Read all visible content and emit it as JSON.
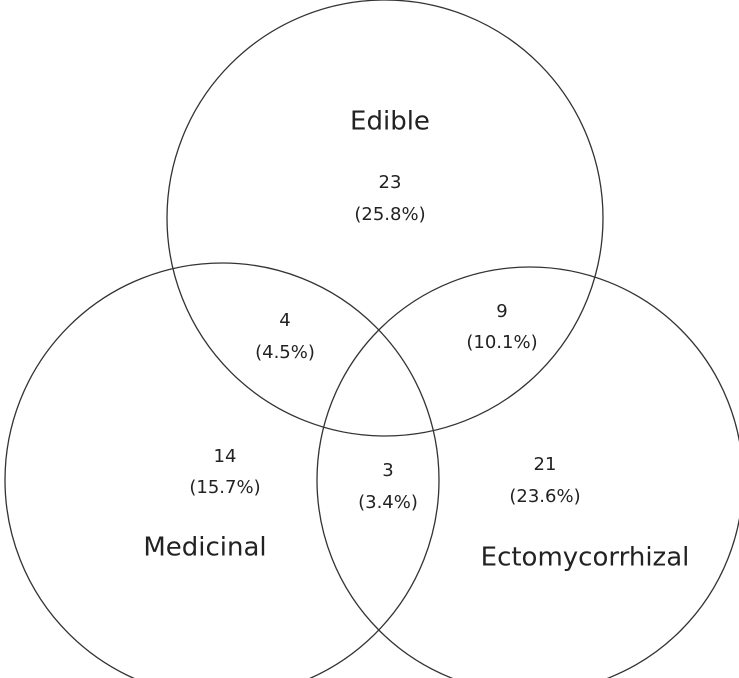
{
  "sets": [
    {
      "label": "Edible"
    },
    {
      "label": "Medicinal"
    },
    {
      "label": "Ectomycorrhizal"
    }
  ],
  "regions": [
    {
      "count": 23,
      "percent": "(25.8%)"
    },
    {
      "count": 4,
      "percent": "(4.5%)"
    },
    {
      "count": 9,
      "percent": "(10.1%)"
    },
    {
      "count": 14,
      "percent": "(15.7%)"
    },
    {
      "count": 3,
      "percent": "(3.4%)"
    },
    {
      "count": 21,
      "percent": "(23.6%)"
    }
  ]
}
